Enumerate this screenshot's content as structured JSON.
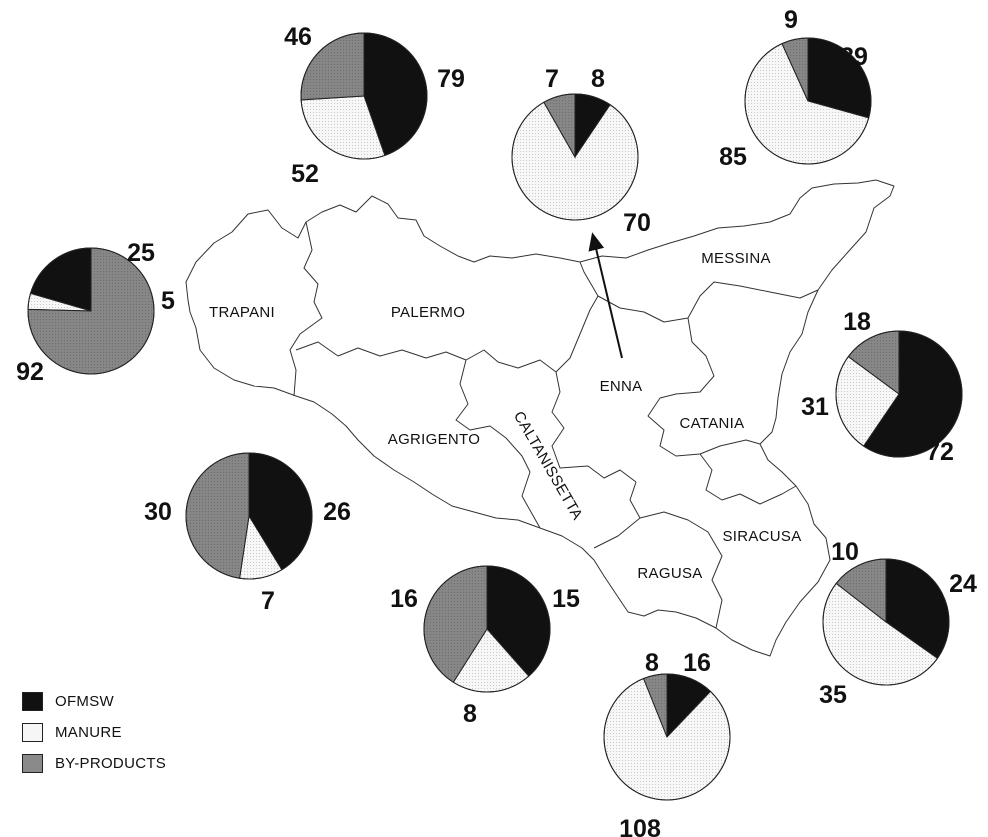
{
  "colors": {
    "OFMSW": "#111111",
    "MANURE": "#f6f6f6",
    "BY-PRODUCTS": "#8a8a8a",
    "outline": "#222222"
  },
  "legend": [
    {
      "label": "OFMSW",
      "key": "OFMSW"
    },
    {
      "label": "MANURE",
      "key": "MANURE"
    },
    {
      "label": "BY-PRODUCTS",
      "key": "BY-PRODUCTS"
    }
  ],
  "provinces": {
    "trapani": "TRAPANI",
    "palermo": "PALERMO",
    "messina": "MESSINA",
    "enna": "ENNA",
    "catania": "CATANIA",
    "agrigento": "AGRIGENTO",
    "caltanissetta": "CALTANISSETTA",
    "ragusa": "RAGUSA",
    "siracusa": "SIRACUSA"
  },
  "chart_data": {
    "type": "pie",
    "series_order": [
      "OFMSW",
      "MANURE",
      "BY-PRODUCTS"
    ],
    "pies": [
      {
        "province": "TRAPANI",
        "values": [
          25,
          5,
          92
        ],
        "labels": [
          "25",
          "5",
          "92"
        ]
      },
      {
        "province": "PALERMO",
        "values": [
          79,
          52,
          46
        ],
        "labels": [
          "79",
          "52",
          "46"
        ]
      },
      {
        "province": "ENNA",
        "values": [
          8,
          70,
          7
        ],
        "labels": [
          "8",
          "70",
          "7"
        ]
      },
      {
        "province": "MESSINA",
        "values": [
          39,
          85,
          9
        ],
        "labels": [
          "39",
          "85",
          "9"
        ]
      },
      {
        "province": "CATANIA",
        "values": [
          72,
          31,
          18
        ],
        "labels": [
          "72",
          "31",
          "18"
        ]
      },
      {
        "province": "AGRIGENTO",
        "values": [
          26,
          7,
          30
        ],
        "labels": [
          "26",
          "7",
          "30"
        ]
      },
      {
        "province": "CALTANISSETTA",
        "values": [
          15,
          8,
          16
        ],
        "labels": [
          "15",
          "8",
          "16"
        ]
      },
      {
        "province": "RAGUSA",
        "values": [
          16,
          108,
          8
        ],
        "labels": [
          "16",
          "108",
          "8"
        ]
      },
      {
        "province": "SIRACUSA",
        "values": [
          24,
          35,
          10
        ],
        "labels": [
          "24",
          "35",
          "10"
        ]
      }
    ]
  }
}
